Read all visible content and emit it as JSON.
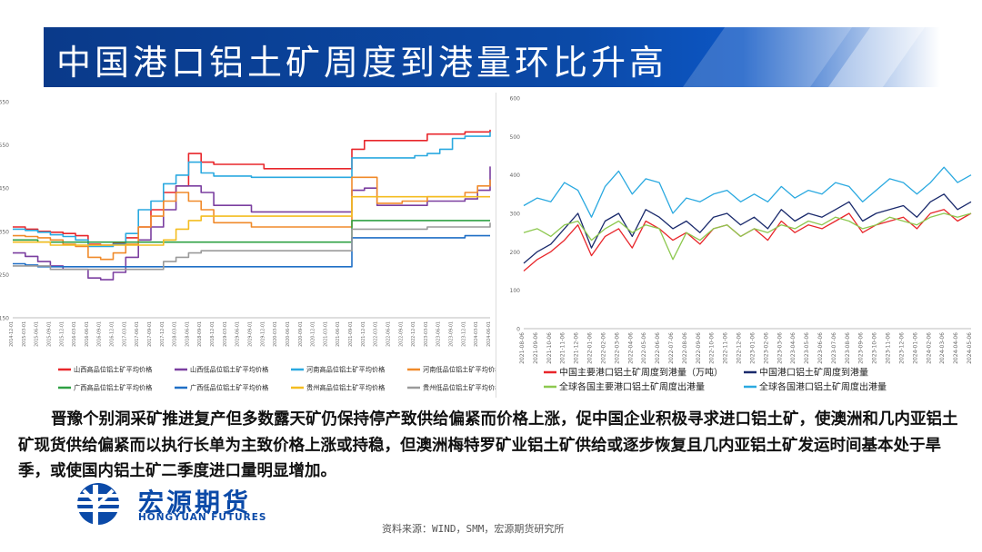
{
  "title": "中国港口铝土矿周度到港量环比升高",
  "colors": {
    "title_bar": "#0b4aa8",
    "logo": "#0b4aa8"
  },
  "chart_data": [
    {
      "type": "line",
      "x": [
        "2014-12-01",
        "2015-03-01",
        "2015-06-01",
        "2015-09-01",
        "2015-12-01",
        "2016-03-01",
        "2016-06-01",
        "2016-09-01",
        "2016-12-01",
        "2017-03-01",
        "2017-06-01",
        "2017-09-01",
        "2017-12-01",
        "2018-03-01",
        "2018-06-01",
        "2018-09-01",
        "2018-12-01",
        "2019-03-01",
        "2019-06-01",
        "2019-09-01",
        "2019-12-01",
        "2020-03-01",
        "2020-06-01",
        "2020-09-01",
        "2020-12-01",
        "2021-03-01",
        "2021-06-01",
        "2021-09-01",
        "2021-12-01",
        "2022-03-01",
        "2022-06-01",
        "2022-09-01",
        "2022-12-01",
        "2023-03-01",
        "2023-06-01",
        "2023-09-01",
        "2023-12-01",
        "2024-03-01",
        "2024-06-01"
      ],
      "ylim": [
        150,
        650
      ],
      "yticks": [
        150,
        250,
        350,
        450,
        550,
        650
      ],
      "series": [
        {
          "name": "山西高品位铝土矿平均价格",
          "color": "#e8262b",
          "values": [
            360,
            355,
            350,
            348,
            345,
            340,
            320,
            318,
            322,
            335,
            360,
            400,
            440,
            455,
            530,
            510,
            505,
            505,
            505,
            505,
            495,
            495,
            495,
            495,
            495,
            495,
            495,
            540,
            560,
            560,
            560,
            560,
            560,
            575,
            575,
            575,
            580,
            580,
            585
          ]
        },
        {
          "name": "山西低品位铝土矿平均价格",
          "color": "#7b3fa0",
          "values": [
            300,
            292,
            280,
            270,
            262,
            262,
            242,
            238,
            255,
            290,
            330,
            360,
            400,
            455,
            455,
            440,
            410,
            410,
            410,
            395,
            395,
            395,
            395,
            395,
            395,
            395,
            395,
            445,
            450,
            410,
            410,
            410,
            410,
            420,
            420,
            420,
            425,
            445,
            500
          ]
        },
        {
          "name": "河南高品位铝土矿平均价格",
          "color": "#2aa9e0",
          "values": [
            355,
            352,
            348,
            342,
            338,
            330,
            315,
            315,
            320,
            345,
            400,
            420,
            460,
            480,
            510,
            485,
            478,
            478,
            478,
            475,
            475,
            475,
            475,
            475,
            475,
            475,
            475,
            520,
            520,
            520,
            520,
            520,
            525,
            530,
            540,
            565,
            570,
            570,
            580
          ]
        },
        {
          "name": "河南低品位铝土矿平均价格",
          "color": "#f08a2a",
          "values": [
            340,
            338,
            335,
            330,
            320,
            315,
            290,
            285,
            300,
            320,
            360,
            385,
            420,
            440,
            420,
            400,
            370,
            370,
            370,
            360,
            360,
            360,
            360,
            360,
            360,
            360,
            360,
            475,
            475,
            415,
            415,
            420,
            420,
            430,
            430,
            430,
            440,
            455,
            470
          ]
        },
        {
          "name": "广西高品位铝土矿平均价格",
          "color": "#2ea043",
          "values": [
            330,
            330,
            325,
            325,
            325,
            325,
            325,
            325,
            325,
            325,
            325,
            325,
            325,
            325,
            325,
            325,
            325,
            325,
            325,
            325,
            325,
            325,
            325,
            325,
            325,
            325,
            325,
            375,
            375,
            375,
            375,
            375,
            375,
            375,
            375,
            375,
            375,
            375,
            375
          ]
        },
        {
          "name": "广西低品位铝土矿平均价格",
          "color": "#1f6fc6",
          "values": [
            275,
            272,
            268,
            268,
            268,
            268,
            268,
            268,
            268,
            268,
            268,
            268,
            268,
            268,
            268,
            268,
            268,
            268,
            268,
            268,
            268,
            268,
            268,
            268,
            268,
            268,
            268,
            335,
            335,
            335,
            335,
            335,
            335,
            335,
            335,
            335,
            340,
            340,
            340
          ]
        },
        {
          "name": "贵州高品位铝土矿平均价格",
          "color": "#f4bd20",
          "values": [
            325,
            325,
            325,
            318,
            318,
            318,
            318,
            318,
            318,
            318,
            318,
            318,
            330,
            355,
            375,
            385,
            385,
            385,
            385,
            385,
            385,
            385,
            385,
            385,
            385,
            385,
            385,
            430,
            430,
            430,
            430,
            430,
            430,
            430,
            430,
            430,
            430,
            430,
            430
          ]
        },
        {
          "name": "贵州低品位铝土矿平均价格",
          "color": "#9a9a9a",
          "values": [
            270,
            270,
            270,
            262,
            262,
            262,
            262,
            262,
            262,
            262,
            262,
            262,
            280,
            290,
            300,
            305,
            305,
            305,
            305,
            305,
            305,
            305,
            305,
            305,
            305,
            305,
            305,
            355,
            355,
            355,
            355,
            355,
            355,
            360,
            360,
            360,
            360,
            360,
            370
          ]
        }
      ]
    },
    {
      "type": "line",
      "x": [
        "2021-08-06",
        "2021-09-06",
        "2021-10-06",
        "2021-11-06",
        "2021-12-06",
        "2022-01-06",
        "2022-02-06",
        "2022-03-06",
        "2022-04-06",
        "2022-05-06",
        "2022-06-06",
        "2022-07-06",
        "2022-08-06",
        "2022-09-06",
        "2022-10-06",
        "2022-11-06",
        "2022-12-06",
        "2023-01-06",
        "2023-02-06",
        "2023-03-06",
        "2023-04-06",
        "2023-05-06",
        "2023-06-06",
        "2023-07-06",
        "2023-08-06",
        "2023-09-06",
        "2023-10-06",
        "2023-11-06",
        "2023-12-06",
        "2024-01-06",
        "2024-02-06",
        "2024-03-06",
        "2024-04-06",
        "2024-05-06"
      ],
      "ylim": [
        0,
        600
      ],
      "yticks": [
        0,
        100,
        200,
        300,
        400,
        500,
        600
      ],
      "series": [
        {
          "name": "中国主要港口铝土矿周度到港量（万吨）",
          "color": "#e8262b",
          "values": [
            150,
            180,
            200,
            230,
            270,
            190,
            240,
            260,
            210,
            280,
            260,
            230,
            250,
            220,
            260,
            270,
            240,
            260,
            230,
            280,
            250,
            270,
            260,
            280,
            300,
            250,
            270,
            280,
            290,
            260,
            300,
            310,
            280,
            300
          ]
        },
        {
          "name": "中国港口铝土矿周度到港量",
          "color": "#1a2a6c",
          "values": [
            170,
            200,
            220,
            260,
            300,
            210,
            280,
            300,
            240,
            310,
            290,
            260,
            280,
            250,
            290,
            300,
            270,
            290,
            260,
            310,
            280,
            300,
            290,
            310,
            330,
            280,
            300,
            310,
            320,
            290,
            330,
            350,
            310,
            330
          ]
        },
        {
          "name": "全球各国主要港口铝土矿周度出港量",
          "color": "#8dc84f",
          "values": [
            250,
            260,
            240,
            270,
            280,
            230,
            260,
            280,
            250,
            270,
            260,
            180,
            250,
            230,
            260,
            270,
            240,
            260,
            250,
            270,
            260,
            280,
            270,
            290,
            280,
            260,
            270,
            290,
            280,
            270,
            290,
            300,
            290,
            300
          ]
        },
        {
          "name": "全球各国港口铝土矿周度出港量",
          "color": "#2aa9e0",
          "values": [
            320,
            340,
            330,
            380,
            360,
            290,
            370,
            410,
            350,
            390,
            380,
            300,
            340,
            330,
            350,
            360,
            330,
            350,
            330,
            370,
            340,
            360,
            350,
            380,
            370,
            330,
            360,
            390,
            380,
            350,
            380,
            420,
            380,
            400
          ]
        }
      ]
    }
  ],
  "body_text": "晋豫个别洞采矿推进复产但多数露天矿仍保持停产致供给偏紧而价格上涨，促中国企业积极寻求进口铝土矿，使澳洲和几内亚铝土矿现货供给偏紧而以执行长单为主致价格上涨或持稳，但澳洲梅特罗矿业铝土矿供给或逐步恢复且几内亚铝土矿发运时间基本处于旱季，或使国内铝土矿二季度进口量明显增加。",
  "logo": {
    "cn": "宏源期货",
    "en": "HONGYUAN FUTURES"
  },
  "source": "资料来源：WIND，SMM，宏源期货研究所"
}
